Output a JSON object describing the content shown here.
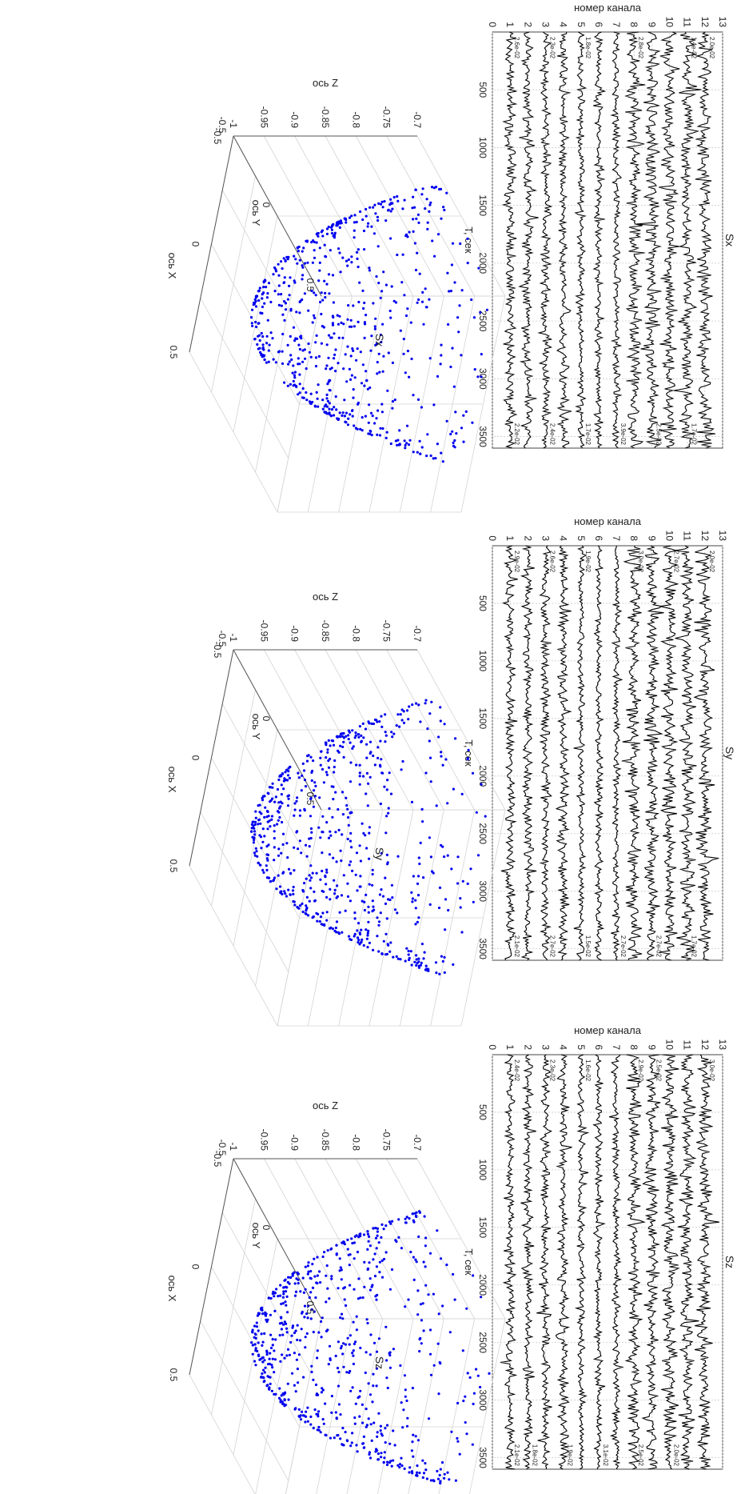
{
  "figure": {
    "rotation_deg": 90,
    "rows": [
      {
        "title": "Sx"
      },
      {
        "title": "Sy"
      },
      {
        "title": "Sz"
      }
    ]
  },
  "chart_data": [
    {
      "type": "line",
      "title": "Sx",
      "xlabel": "T, сек",
      "ylabel": "номер канала",
      "xlim": [
        0,
        3600
      ],
      "ylim": [
        0,
        13
      ],
      "xticks": [
        "500",
        "1000",
        "1500",
        "2000",
        "2500",
        "3000",
        "3500"
      ],
      "yticks": [
        "0",
        "1",
        "2",
        "3",
        "4",
        "5",
        "6",
        "7",
        "8",
        "9",
        "10",
        "11",
        "12",
        "13"
      ],
      "grid": true,
      "series": [
        {
          "channel": 1,
          "amp": 0.3,
          "left_label": "2.6e-02",
          "right_label": "2.2e-02"
        },
        {
          "channel": 2,
          "amp": 0.3,
          "left_label": "",
          "right_label": ""
        },
        {
          "channel": 3,
          "amp": 0.3,
          "left_label": "2.3e-02",
          "right_label": "2.4e-02"
        },
        {
          "channel": 4,
          "amp": 0.3,
          "left_label": "",
          "right_label": ""
        },
        {
          "channel": 5,
          "amp": 0.22,
          "left_label": "1.8e-02",
          "right_label": "1.7e-02"
        },
        {
          "channel": 6,
          "amp": 0.22,
          "left_label": "",
          "right_label": ""
        },
        {
          "channel": 7,
          "amp": 0.22,
          "left_label": "",
          "right_label": "3.9e-02"
        },
        {
          "channel": 8,
          "amp": 0.42,
          "left_label": "2.8e-02",
          "right_label": ""
        },
        {
          "channel": 9,
          "amp": 0.42,
          "left_label": "",
          "right_label": "2.5e-02"
        },
        {
          "channel": 10,
          "amp": 0.42,
          "left_label": "",
          "right_label": ""
        },
        {
          "channel": 11,
          "amp": 0.42,
          "left_label": "1.4e-02",
          "right_label": "1.7e-02"
        },
        {
          "channel": 12,
          "amp": 0.42,
          "left_label": "2.0e-02",
          "right_label": ""
        }
      ]
    },
    {
      "type": "line",
      "title": "Sy",
      "xlabel": "T, сек",
      "ylabel": "номер канала",
      "xlim": [
        0,
        3600
      ],
      "ylim": [
        0,
        13
      ],
      "xticks": [
        "500",
        "1000",
        "1500",
        "2000",
        "2500",
        "3000",
        "3500"
      ],
      "yticks": [
        "0",
        "1",
        "2",
        "3",
        "4",
        "5",
        "6",
        "7",
        "8",
        "9",
        "10",
        "11",
        "12",
        "13"
      ],
      "grid": true,
      "series": [
        {
          "channel": 1,
          "amp": 0.3,
          "left_label": "2.9e-02",
          "right_label": "2.1e-02"
        },
        {
          "channel": 2,
          "amp": 0.3,
          "left_label": "",
          "right_label": ""
        },
        {
          "channel": 3,
          "amp": 0.3,
          "left_label": "2.6e-02",
          "right_label": "2.7e-02"
        },
        {
          "channel": 4,
          "amp": 0.3,
          "left_label": "",
          "right_label": ""
        },
        {
          "channel": 5,
          "amp": 0.22,
          "left_label": "1.9e-02",
          "right_label": "1.5e-02"
        },
        {
          "channel": 6,
          "amp": 0.22,
          "left_label": "",
          "right_label": ""
        },
        {
          "channel": 7,
          "amp": 0.22,
          "left_label": "",
          "right_label": "2.7e-02"
        },
        {
          "channel": 8,
          "amp": 0.42,
          "left_label": "3.0e-02",
          "right_label": ""
        },
        {
          "channel": 9,
          "amp": 0.42,
          "left_label": "",
          "right_label": "2.7e-02"
        },
        {
          "channel": 10,
          "amp": 0.42,
          "left_label": "2.7e-02",
          "right_label": ""
        },
        {
          "channel": 11,
          "amp": 0.42,
          "left_label": "",
          "right_label": "1.7e-02"
        },
        {
          "channel": 12,
          "amp": 0.42,
          "left_label": "2.0e-02",
          "right_label": ""
        }
      ]
    },
    {
      "type": "line",
      "title": "Sz",
      "xlabel": "T, сек",
      "ylabel": "номер канала",
      "xlim": [
        0,
        3600
      ],
      "ylim": [
        0,
        13
      ],
      "xticks": [
        "500",
        "1000",
        "1500",
        "2000",
        "2500",
        "3000",
        "3500"
      ],
      "yticks": [
        "0",
        "1",
        "2",
        "3",
        "4",
        "5",
        "6",
        "7",
        "8",
        "9",
        "10",
        "11",
        "12",
        "13"
      ],
      "grid": true,
      "series": [
        {
          "channel": 1,
          "amp": 0.3,
          "left_label": "2.4e-02",
          "right_label": "2.1e-02"
        },
        {
          "channel": 2,
          "amp": 0.3,
          "left_label": "",
          "right_label": "1.8e-02"
        },
        {
          "channel": 3,
          "amp": 0.3,
          "left_label": "2.3e-02",
          "right_label": ""
        },
        {
          "channel": 4,
          "amp": 0.3,
          "left_label": "",
          "right_label": "1.9e-02"
        },
        {
          "channel": 5,
          "amp": 0.22,
          "left_label": "1.6e-02",
          "right_label": ""
        },
        {
          "channel": 6,
          "amp": 0.22,
          "left_label": "",
          "right_label": "3.1e-02"
        },
        {
          "channel": 7,
          "amp": 0.22,
          "left_label": "",
          "right_label": ""
        },
        {
          "channel": 8,
          "amp": 0.42,
          "left_label": "2.9e-02",
          "right_label": "2.5e-02"
        },
        {
          "channel": 9,
          "amp": 0.42,
          "left_label": "2.5e-02",
          "right_label": ""
        },
        {
          "channel": 10,
          "amp": 0.42,
          "left_label": "",
          "right_label": "2.0e-02"
        },
        {
          "channel": 11,
          "amp": 0.42,
          "left_label": "",
          "right_label": ""
        },
        {
          "channel": 12,
          "amp": 0.42,
          "left_label": "3.0e-02",
          "right_label": ""
        }
      ]
    },
    {
      "type": "scatter",
      "title": "Sx",
      "xlabel": "ось X",
      "ylabel": "ось Y",
      "zlabel": "ось Z",
      "xlim": [
        -0.5,
        0.5
      ],
      "ylim": [
        -0.5,
        0.5
      ],
      "zlim": [
        -1,
        -0.7
      ],
      "xticks": [
        "-0.5",
        "0",
        "0.5"
      ],
      "yticks": [
        "-0.5",
        "0",
        "0.5"
      ],
      "zticks": [
        "-1",
        "-0.95",
        "-0.9",
        "-0.85",
        "-0.8",
        "-0.75",
        "-0.7"
      ],
      "grid": true,
      "marker_color": "#0000ee",
      "n_points": 720,
      "seed": 11
    },
    {
      "type": "scatter",
      "title": "Sy",
      "xlabel": "ось X",
      "ylabel": "ось Y",
      "zlabel": "ось Z",
      "xlim": [
        -0.5,
        0.5
      ],
      "ylim": [
        -0.5,
        0.5
      ],
      "zlim": [
        -1,
        -0.7
      ],
      "xticks": [
        "-0.5",
        "0",
        "0.5"
      ],
      "yticks": [
        "-0.5",
        "0",
        "0.5"
      ],
      "zticks": [
        "-1",
        "-0.95",
        "-0.9",
        "-0.85",
        "-0.8",
        "-0.75",
        "-0.7"
      ],
      "grid": true,
      "marker_color": "#0000ee",
      "n_points": 720,
      "seed": 23
    },
    {
      "type": "scatter",
      "title": "Sz",
      "xlabel": "ось X",
      "ylabel": "ось Y",
      "zlabel": "ось Z",
      "xlim": [
        -0.5,
        0.5
      ],
      "ylim": [
        -0.5,
        0.5
      ],
      "zlim": [
        -1,
        -0.7
      ],
      "xticks": [
        "-0.5",
        "0",
        "0.5"
      ],
      "yticks": [
        "-0.5",
        "0",
        "0.5"
      ],
      "zticks": [
        "-1",
        "-0.95",
        "-0.9",
        "-0.85",
        "-0.8",
        "-0.75",
        "-0.7"
      ],
      "grid": true,
      "marker_color": "#0000ee",
      "n_points": 720,
      "seed": 37
    }
  ]
}
